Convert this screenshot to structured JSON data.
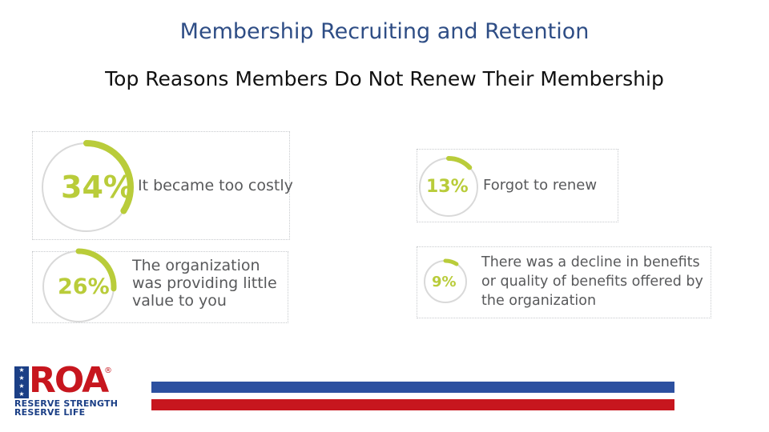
{
  "header": {
    "title": "Membership Recruiting and Retention",
    "subtitle": "Top Reasons Members Do Not Renew Their Membership"
  },
  "stats": [
    {
      "percent": "34%",
      "value": 34,
      "label": "It became too costly"
    },
    {
      "percent": "13%",
      "value": 13,
      "label": "Forgot to renew"
    },
    {
      "percent": "26%",
      "value": 26,
      "label": "The organization was providing little value to you"
    },
    {
      "percent": "9%",
      "value": 9,
      "label": "There was a decline in benefits or quality of benefits offered by the organization"
    }
  ],
  "logo": {
    "name": "ROA",
    "registered": "®",
    "tagline_1": "RESERVE STRENGTH",
    "tagline_2": "RESERVE LIFE"
  },
  "colors": {
    "accent": "#b9cc3a",
    "ring_track": "#d9d9d9",
    "title_blue": "#2e4d85",
    "stripe_blue": "#2c50a0",
    "stripe_red": "#c7161e"
  }
}
